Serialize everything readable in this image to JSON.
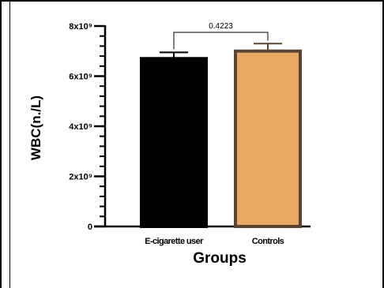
{
  "chart_data": {
    "type": "bar",
    "categories": [
      "E-cigarette user",
      "Controls"
    ],
    "values": [
      6.7,
      7.0
    ],
    "errors": [
      0.25,
      0.3
    ],
    "colors": [
      "#000000",
      "#e9a964"
    ],
    "edge_colors": [
      "#000000",
      "#5a4532"
    ],
    "xlabel": "Groups",
    "ylabel": "WBC(n./L)",
    "ylim": [
      0,
      8
    ],
    "yticks": [
      0,
      2,
      4,
      6,
      8
    ],
    "ytick_labels": [
      "0",
      "2x10⁹",
      "4x10⁹",
      "6x10⁹",
      "8x10⁹"
    ],
    "minor_ticks_per_major": 4,
    "grid": false,
    "annotations": [
      {
        "type": "significance",
        "between": [
          0,
          1
        ],
        "text": "0.4223"
      }
    ]
  }
}
